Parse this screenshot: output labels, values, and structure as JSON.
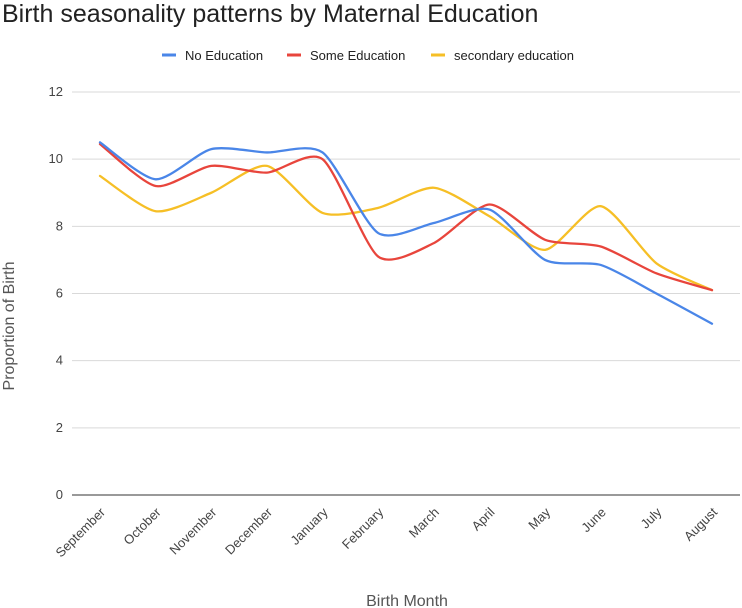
{
  "chart_data": {
    "type": "line",
    "title": "Birth seasonality patterns by Maternal Education",
    "xlabel": "Birth Month",
    "ylabel": "Proportion of Birth",
    "ylim": [
      0,
      12
    ],
    "yticks": [
      0,
      2,
      4,
      6,
      8,
      10,
      12
    ],
    "grid": true,
    "legend_position": "top",
    "categories": [
      "September",
      "October",
      "November",
      "December",
      "January",
      "February",
      "March",
      "April",
      "May",
      "June",
      "July",
      "August"
    ],
    "series": [
      {
        "name": "No Education",
        "color": "#4a86e8",
        "values": [
          10.5,
          9.4,
          10.3,
          10.2,
          10.2,
          7.8,
          8.1,
          8.5,
          7.0,
          6.85,
          6.0,
          5.1
        ]
      },
      {
        "name": "Some Education",
        "color": "#e8453c",
        "values": [
          10.45,
          9.2,
          9.8,
          9.6,
          10.0,
          7.1,
          7.5,
          8.65,
          7.6,
          7.4,
          6.6,
          6.1
        ]
      },
      {
        "name": "secondary education",
        "color": "#f6bf26",
        "values": [
          9.5,
          8.45,
          9.0,
          9.8,
          8.4,
          8.55,
          9.15,
          8.3,
          7.3,
          8.6,
          6.9,
          6.1
        ]
      }
    ]
  }
}
